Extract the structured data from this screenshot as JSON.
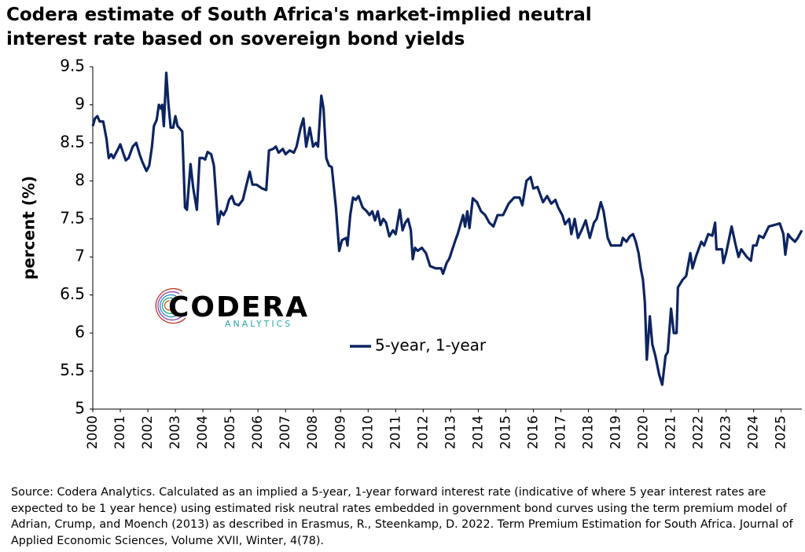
{
  "chart_data": {
    "type": "line",
    "title": "Codera estimate of South Africa's market-implied neutral interest rate based on sovereign bond yields",
    "y_label": "percent (%)",
    "source": "Source: Codera Analytics. Calculated as an implied a 5-year, 1-year forward interest rate (indicative of where 5 year interest rates are expected to be 1 year hence) using estimated risk neutral rates embedded in government bond curves using the term premium model of Adrian, Crump, and Moench (2013) as described in Erasmus, R., Steenkamp, D. 2022. Term Premium Estimation for South Africa. Journal of Applied Economic Sciences, Volume XVII, Winter, 4(78).",
    "logo": {
      "name": "CODERA",
      "tagline": "ANALYTICS"
    },
    "legend": "inside",
    "grid": false,
    "xlim": [
      2000,
      2025.75
    ],
    "xticks": [
      2000,
      2001,
      2002,
      2003,
      2004,
      2005,
      2006,
      2007,
      2008,
      2009,
      2010,
      2011,
      2012,
      2013,
      2014,
      2015,
      2016,
      2017,
      2018,
      2019,
      2020,
      2021,
      2022,
      2023,
      2024,
      2025
    ],
    "ylim": [
      5,
      9.5
    ],
    "yticks": [
      5,
      5.5,
      6,
      6.5,
      7,
      7.5,
      8,
      8.5,
      9,
      9.5
    ],
    "x": [
      2000.0,
      2000.08,
      2000.17,
      2000.25,
      2000.38,
      2000.5,
      2000.58,
      2000.67,
      2000.75,
      2000.92,
      2001.0,
      2001.12,
      2001.2,
      2001.3,
      2001.45,
      2001.58,
      2001.7,
      2001.8,
      2001.95,
      2002.05,
      2002.15,
      2002.22,
      2002.32,
      2002.4,
      2002.48,
      2002.52,
      2002.58,
      2002.67,
      2002.75,
      2002.83,
      2002.92,
      2003.0,
      2003.08,
      2003.25,
      2003.35,
      2003.42,
      2003.55,
      2003.65,
      2003.78,
      2003.88,
      2004.0,
      2004.08,
      2004.17,
      2004.3,
      2004.4,
      2004.55,
      2004.65,
      2004.75,
      2004.85,
      2004.95,
      2005.05,
      2005.15,
      2005.3,
      2005.45,
      2005.55,
      2005.7,
      2005.8,
      2005.95,
      2006.15,
      2006.3,
      2006.4,
      2006.55,
      2006.65,
      2006.75,
      2006.9,
      2007.0,
      2007.15,
      2007.3,
      2007.4,
      2007.55,
      2007.65,
      2007.75,
      2007.88,
      2008.0,
      2008.1,
      2008.18,
      2008.3,
      2008.38,
      2008.48,
      2008.58,
      2008.68,
      2008.83,
      2008.95,
      2009.05,
      2009.2,
      2009.25,
      2009.35,
      2009.45,
      2009.55,
      2009.65,
      2009.8,
      2009.95,
      2010.05,
      2010.15,
      2010.25,
      2010.35,
      2010.45,
      2010.55,
      2010.65,
      2010.77,
      2010.9,
      2011.0,
      2011.15,
      2011.25,
      2011.35,
      2011.45,
      2011.55,
      2011.62,
      2011.7,
      2011.8,
      2011.95,
      2012.1,
      2012.25,
      2012.45,
      2012.65,
      2012.72,
      2012.85,
      2012.95,
      2013.15,
      2013.25,
      2013.45,
      2013.52,
      2013.6,
      2013.68,
      2013.8,
      2013.95,
      2014.1,
      2014.25,
      2014.4,
      2014.55,
      2014.7,
      2014.9,
      2015.1,
      2015.3,
      2015.5,
      2015.6,
      2015.75,
      2015.9,
      2016.0,
      2016.15,
      2016.35,
      2016.5,
      2016.65,
      2016.8,
      2016.9,
      2017.05,
      2017.15,
      2017.3,
      2017.38,
      2017.5,
      2017.62,
      2017.75,
      2017.9,
      2018.05,
      2018.2,
      2018.3,
      2018.45,
      2018.55,
      2018.7,
      2018.82,
      2019.0,
      2019.18,
      2019.25,
      2019.38,
      2019.5,
      2019.62,
      2019.72,
      2019.82,
      2019.9,
      2019.98,
      2020.05,
      2020.12,
      2020.23,
      2020.32,
      2020.43,
      2020.57,
      2020.68,
      2020.8,
      2020.88,
      2021.0,
      2021.1,
      2021.2,
      2021.25,
      2021.42,
      2021.55,
      2021.7,
      2021.78,
      2021.9,
      2022.1,
      2022.2,
      2022.35,
      2022.5,
      2022.6,
      2022.65,
      2022.85,
      2022.9,
      2023.0,
      2023.2,
      2023.35,
      2023.45,
      2023.55,
      2023.75,
      2023.9,
      2023.98,
      2024.1,
      2024.2,
      2024.35,
      2024.55,
      2024.75,
      2024.95,
      2025.08,
      2025.15,
      2025.25,
      2025.35,
      2025.5,
      2025.6,
      2025.75
    ],
    "series": [
      {
        "name": "5-year, 1-year",
        "color": "#0c2461",
        "values": [
          8.72,
          8.82,
          8.85,
          8.78,
          8.78,
          8.55,
          8.3,
          8.35,
          8.3,
          8.42,
          8.48,
          8.35,
          8.27,
          8.3,
          8.45,
          8.5,
          8.35,
          8.25,
          8.13,
          8.2,
          8.45,
          8.72,
          8.8,
          9.0,
          8.95,
          9.0,
          8.72,
          9.42,
          9.0,
          8.7,
          8.7,
          8.85,
          8.72,
          8.65,
          7.65,
          7.62,
          8.22,
          7.9,
          7.62,
          8.3,
          8.3,
          8.28,
          8.38,
          8.35,
          8.2,
          7.43,
          7.6,
          7.55,
          7.62,
          7.75,
          7.8,
          7.7,
          7.68,
          7.75,
          7.9,
          8.12,
          7.95,
          7.95,
          7.9,
          7.88,
          8.4,
          8.42,
          8.45,
          8.37,
          8.42,
          8.35,
          8.4,
          8.37,
          8.45,
          8.7,
          8.82,
          8.45,
          8.7,
          8.45,
          8.5,
          8.45,
          9.12,
          8.95,
          8.3,
          8.2,
          8.18,
          7.65,
          7.08,
          7.22,
          7.25,
          7.15,
          7.55,
          7.78,
          7.75,
          7.8,
          7.65,
          7.6,
          7.55,
          7.6,
          7.48,
          7.6,
          7.42,
          7.5,
          7.45,
          7.27,
          7.35,
          7.3,
          7.62,
          7.35,
          7.45,
          7.5,
          7.35,
          6.97,
          7.12,
          7.08,
          7.12,
          7.05,
          6.88,
          6.85,
          6.85,
          6.78,
          6.92,
          6.98,
          7.2,
          7.3,
          7.55,
          7.4,
          7.6,
          7.38,
          7.77,
          7.72,
          7.6,
          7.55,
          7.45,
          7.4,
          7.55,
          7.55,
          7.7,
          7.78,
          7.78,
          7.68,
          8.0,
          8.05,
          7.9,
          7.92,
          7.72,
          7.8,
          7.7,
          7.75,
          7.65,
          7.55,
          7.43,
          7.5,
          7.3,
          7.5,
          7.25,
          7.35,
          7.48,
          7.25,
          7.45,
          7.5,
          7.72,
          7.6,
          7.25,
          7.15,
          7.15,
          7.15,
          7.25,
          7.2,
          7.27,
          7.3,
          7.2,
          7.05,
          6.85,
          6.7,
          6.4,
          5.65,
          6.22,
          5.85,
          5.7,
          5.45,
          5.32,
          5.7,
          5.75,
          6.32,
          6.0,
          6.0,
          6.6,
          6.7,
          6.75,
          7.05,
          6.85,
          7.0,
          7.2,
          7.15,
          7.3,
          7.28,
          7.45,
          7.1,
          7.1,
          6.92,
          7.05,
          7.4,
          7.15,
          7.0,
          7.1,
          7.0,
          6.95,
          7.15,
          7.15,
          7.28,
          7.25,
          7.4,
          7.42,
          7.44,
          7.3,
          7.03,
          7.3,
          7.25,
          7.2,
          7.25,
          7.35
        ]
      }
    ]
  }
}
